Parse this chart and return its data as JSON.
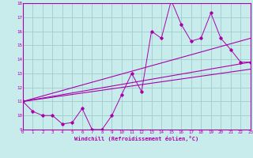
{
  "xlabel": "Windchill (Refroidissement éolien,°C)",
  "bg_color": "#c8ecec",
  "grid_color": "#a0cccc",
  "line_color": "#aa00aa",
  "spine_color": "#aa00aa",
  "xmin": 0,
  "xmax": 23,
  "ymin": 9,
  "ymax": 18,
  "yticks": [
    9,
    10,
    11,
    12,
    13,
    14,
    15,
    16,
    17,
    18
  ],
  "xticks": [
    0,
    1,
    2,
    3,
    4,
    5,
    6,
    7,
    8,
    9,
    10,
    11,
    12,
    13,
    14,
    15,
    16,
    17,
    18,
    19,
    20,
    21,
    22,
    23
  ],
  "line1_x": [
    0,
    1,
    2,
    3,
    4,
    5,
    6,
    7,
    8,
    9,
    10,
    11,
    12,
    13,
    14,
    15,
    16,
    17,
    18,
    19,
    20,
    21,
    22,
    23
  ],
  "line1_y": [
    11.0,
    10.3,
    10.0,
    10.0,
    9.4,
    9.5,
    10.5,
    9.0,
    9.0,
    10.0,
    11.5,
    13.0,
    11.7,
    16.0,
    15.5,
    18.2,
    16.5,
    15.3,
    15.5,
    17.3,
    15.5,
    14.7,
    13.8,
    13.8
  ],
  "line2_x": [
    0,
    23
  ],
  "line2_y": [
    11.0,
    13.8
  ],
  "line3_x": [
    0,
    23
  ],
  "line3_y": [
    11.0,
    15.5
  ],
  "line4_x": [
    0,
    23
  ],
  "line4_y": [
    11.0,
    13.3
  ]
}
